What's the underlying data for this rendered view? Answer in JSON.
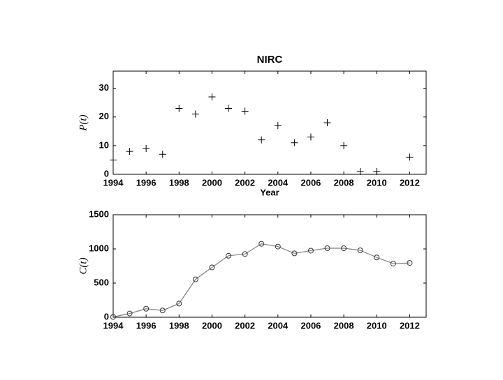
{
  "chart_data": [
    {
      "type": "scatter",
      "title": "NIRC",
      "x_label": "Year",
      "y_label": "P(t)",
      "x": [
        1994,
        1995,
        1996,
        1997,
        1998,
        1999,
        2000,
        2001,
        2002,
        2003,
        2004,
        2005,
        2006,
        2007,
        2008,
        2009,
        2010,
        2012
      ],
      "values": [
        5,
        8,
        9,
        7,
        23,
        21,
        27,
        23,
        22,
        12,
        17,
        11,
        13,
        18,
        10,
        1,
        1,
        6
      ],
      "color": "#000000",
      "xlim": [
        1994,
        2013
      ],
      "xticks": [
        1994,
        1996,
        1998,
        2000,
        2002,
        2004,
        2006,
        2008,
        2010,
        2012
      ],
      "ylim": [
        0,
        36
      ],
      "yticks": [
        0,
        10,
        20,
        30
      ]
    },
    {
      "type": "line",
      "y_label": "C(t)",
      "x": [
        1994,
        1995,
        1996,
        1997,
        1998,
        1999,
        2000,
        2001,
        2002,
        2003,
        2004,
        2005,
        2006,
        2007,
        2008,
        2009,
        2010,
        2011,
        2012
      ],
      "values": [
        5,
        55,
        125,
        100,
        200,
        555,
        730,
        900,
        925,
        1075,
        1035,
        935,
        975,
        1010,
        1010,
        980,
        875,
        785,
        795
      ],
      "color": "#808080",
      "xlim": [
        1994,
        2013
      ],
      "xticks": [
        1994,
        1996,
        1998,
        2000,
        2002,
        2004,
        2006,
        2008,
        2010,
        2012
      ],
      "ylim": [
        0,
        1500
      ],
      "yticks": [
        0,
        500,
        1000,
        1500
      ]
    }
  ]
}
